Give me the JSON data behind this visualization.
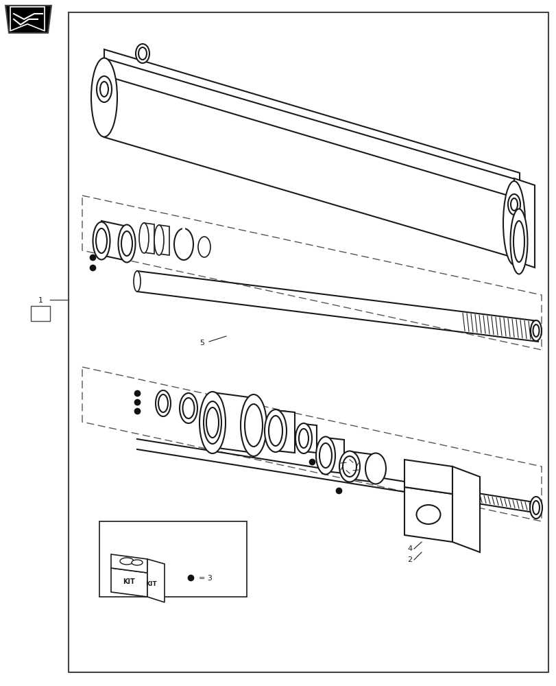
{
  "bg_color": "#ffffff",
  "line_color": "#1a1a1a",
  "border_color": "#444444",
  "dash_color": "#555555",
  "dot_color": "#111111"
}
